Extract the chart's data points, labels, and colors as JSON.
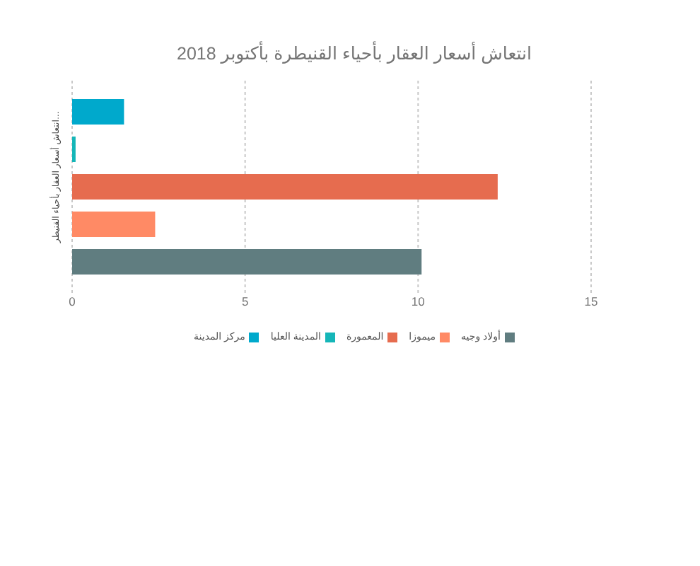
{
  "chart_data": {
    "type": "bar",
    "orientation": "horizontal",
    "title": "انتعاش أسعار العقار بأحياء القنيطرة بأكتوبر 2018",
    "ylabel": "انتعاش أسعار العقار بأحياء القنيطر…",
    "categories": [
      null
    ],
    "series": [
      {
        "name": "مركز المدينة",
        "color": "#00a9cc",
        "values": [
          1.5
        ]
      },
      {
        "name": "المدينة العليا",
        "color": "#15b6b8",
        "values": [
          0.1
        ]
      },
      {
        "name": "المعمورة",
        "color": "#e66c4f",
        "values": [
          12.3
        ]
      },
      {
        "name": "ميموزا",
        "color": "#ff8a65",
        "values": [
          2.4
        ]
      },
      {
        "name": "أولاد وجيه",
        "color": "#607d80",
        "values": [
          10.1
        ]
      }
    ],
    "xlim": [
      0,
      15
    ],
    "xticks": [
      0,
      5,
      10,
      15
    ],
    "grid": "x",
    "legend": "bottom"
  }
}
